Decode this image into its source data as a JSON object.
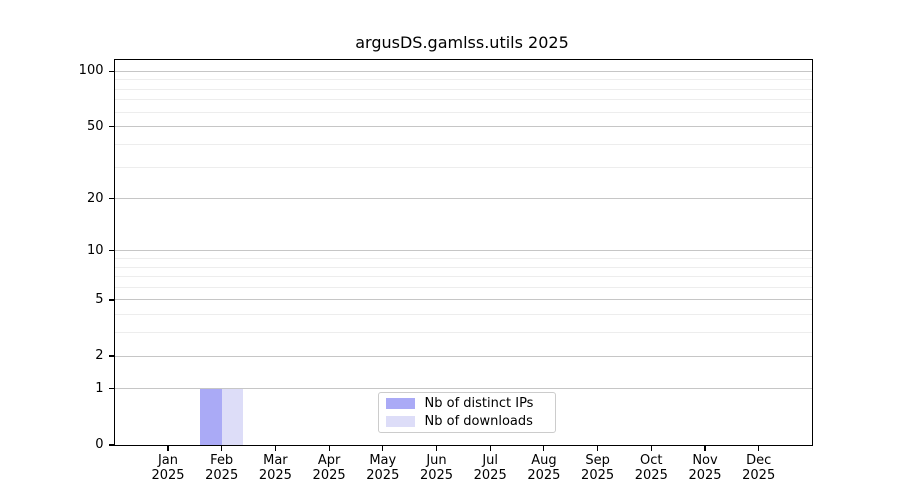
{
  "title": "argusDS.gamlss.utils 2025",
  "colors": {
    "background": "#ffffff",
    "axis": "#000000",
    "grid_major": "#c6c6c6",
    "grid_minor": "#ededed",
    "legend_border": "#cccccc",
    "bar_distinct_ips": "#aaaaf6",
    "bar_downloads": "#ddddf8"
  },
  "chart_data": {
    "type": "bar",
    "title": "argusDS.gamlss.utils 2025",
    "categories": [
      "Jan",
      "Feb",
      "Mar",
      "Apr",
      "May",
      "Jun",
      "Jul",
      "Aug",
      "Sep",
      "Oct",
      "Nov",
      "Dec"
    ],
    "year_label": "2025",
    "series": [
      {
        "name": "Nb of distinct IPs",
        "color": "#aaaaf6",
        "values": [
          0,
          1,
          0,
          0,
          0,
          0,
          0,
          0,
          0,
          0,
          0,
          0
        ]
      },
      {
        "name": "Nb of downloads",
        "color": "#ddddf8",
        "values": [
          0,
          1,
          0,
          0,
          0,
          0,
          0,
          0,
          0,
          0,
          0,
          0
        ]
      }
    ],
    "xlabel": "",
    "ylabel": "",
    "yscale": "log1p",
    "ylim": [
      0,
      116
    ],
    "y_ticks": [
      0,
      1,
      2,
      5,
      10,
      20,
      50,
      100
    ],
    "major_gridlines": [
      1,
      2,
      5,
      10,
      20,
      50,
      100
    ],
    "minor_gridlines": [
      3,
      4,
      6,
      7,
      8,
      9,
      30,
      40,
      60,
      70,
      80,
      90
    ],
    "grid": "horizontal",
    "legend_position": "bottom-center"
  }
}
